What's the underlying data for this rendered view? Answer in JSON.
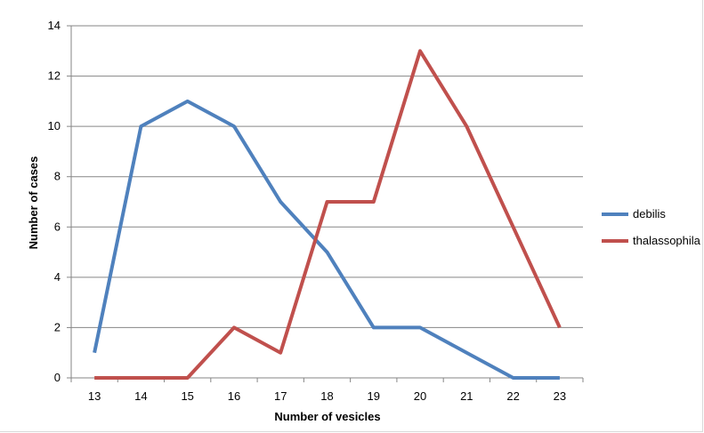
{
  "chart_data": {
    "type": "line",
    "title": "",
    "xlabel": "Number of vesicles",
    "ylabel": "Number of cases",
    "x": [
      13,
      14,
      15,
      16,
      17,
      18,
      19,
      20,
      21,
      22,
      23
    ],
    "ylim": [
      0,
      14
    ],
    "yticks": [
      0,
      2,
      4,
      6,
      8,
      10,
      12,
      14
    ],
    "grid": true,
    "legend_position": "right",
    "series": [
      {
        "name": "debilis",
        "color": "#4F81BD",
        "values": [
          1,
          10,
          11,
          10,
          7,
          5,
          2,
          2,
          1,
          0,
          0
        ]
      },
      {
        "name": "thalassophila",
        "color": "#C0504D",
        "values": [
          0,
          0,
          0,
          2,
          1,
          7,
          7,
          13,
          10,
          6,
          2
        ]
      }
    ]
  }
}
